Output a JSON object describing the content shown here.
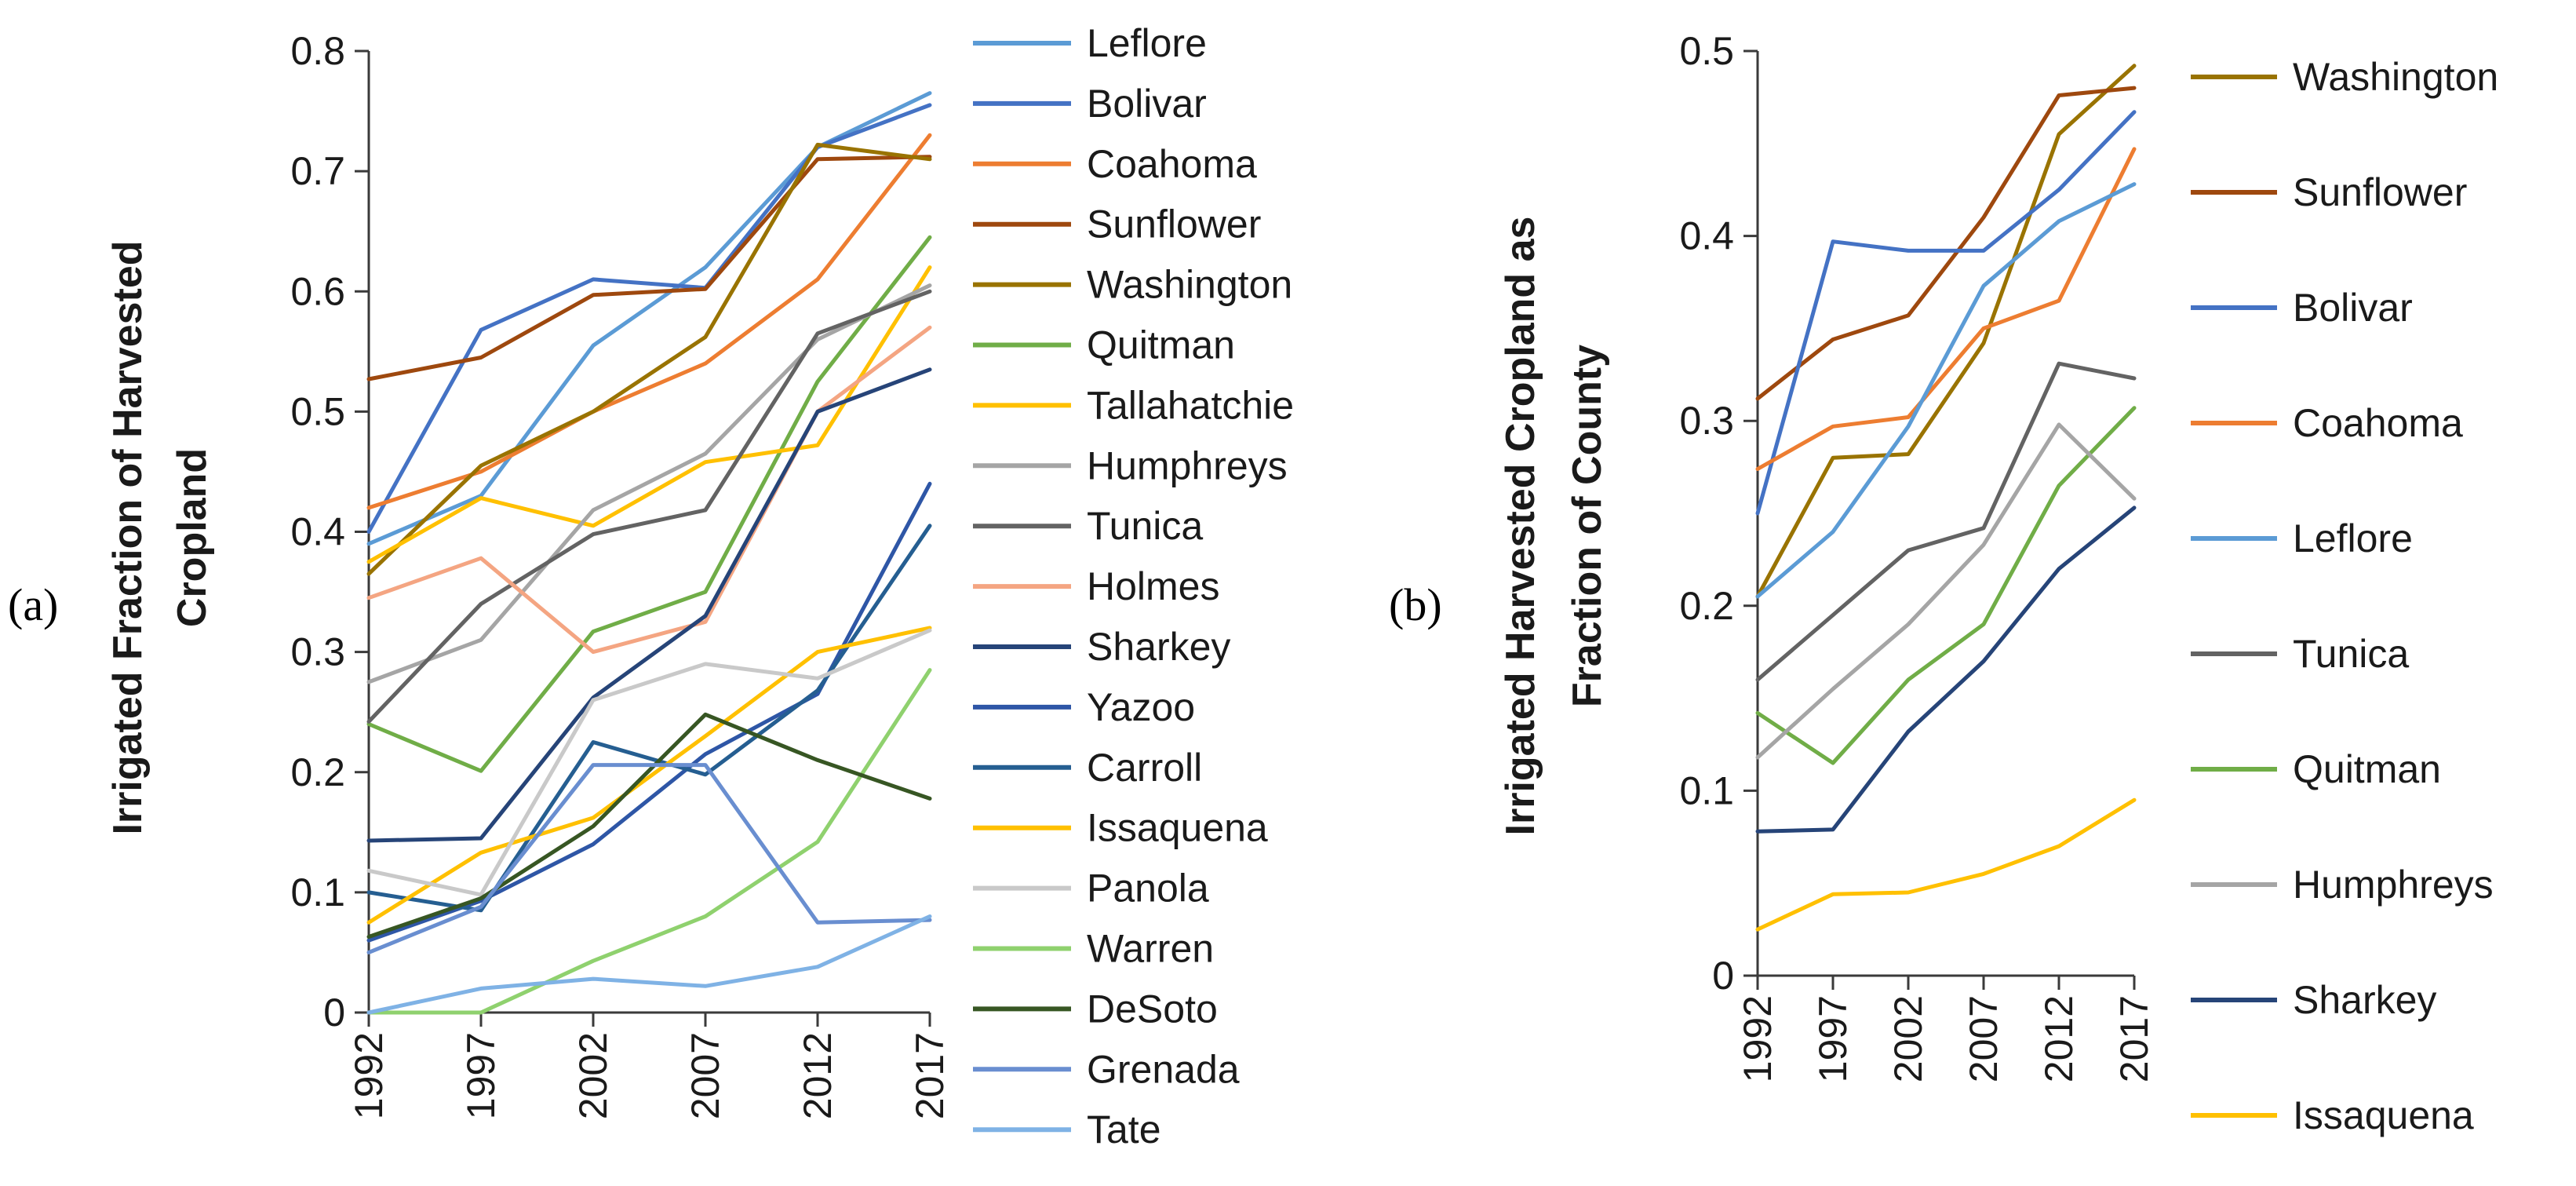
{
  "chart_data": [
    {
      "type": "line",
      "panel_label": "(a)",
      "title": "",
      "xlabel": "",
      "ylabel": "Irrigated Fraction of Harvested Cropland",
      "ylabel_lines": [
        "Irrigated Fraction of Harvested",
        "Cropland"
      ],
      "x": [
        "1992",
        "1997",
        "2002",
        "2007",
        "2012",
        "2017"
      ],
      "ylim": [
        0,
        0.8
      ],
      "yticks": [
        "0",
        "0.1",
        "0.2",
        "0.3",
        "0.4",
        "0.5",
        "0.6",
        "0.7",
        "0.8"
      ],
      "legend_position": "right",
      "series": [
        {
          "name": "Leflore",
          "color": "#5B9BD5",
          "values": [
            0.39,
            0.43,
            0.555,
            0.62,
            0.72,
            0.765
          ]
        },
        {
          "name": "Bolivar",
          "color": "#4472C4",
          "values": [
            0.4,
            0.568,
            0.61,
            0.603,
            0.72,
            0.755
          ]
        },
        {
          "name": "Coahoma",
          "color": "#ED7D31",
          "values": [
            0.42,
            0.45,
            0.5,
            0.54,
            0.61,
            0.73
          ]
        },
        {
          "name": "Sunflower",
          "color": "#9E480E",
          "values": [
            0.527,
            0.545,
            0.597,
            0.602,
            0.71,
            0.712
          ]
        },
        {
          "name": "Washington",
          "color": "#997300",
          "values": [
            0.365,
            0.455,
            0.5,
            0.562,
            0.722,
            0.71
          ]
        },
        {
          "name": "Quitman",
          "color": "#70AD47",
          "values": [
            0.24,
            0.201,
            0.317,
            0.35,
            0.525,
            0.645
          ]
        },
        {
          "name": "Tallahatchie",
          "color": "#FFC000",
          "values": [
            0.375,
            0.428,
            0.405,
            0.458,
            0.472,
            0.62
          ]
        },
        {
          "name": "Humphreys",
          "color": "#A5A5A5",
          "values": [
            0.275,
            0.31,
            0.418,
            0.465,
            0.56,
            0.605
          ]
        },
        {
          "name": "Tunica",
          "color": "#636363",
          "values": [
            0.242,
            0.34,
            0.398,
            0.418,
            0.565,
            0.6
          ]
        },
        {
          "name": "Holmes",
          "color": "#F4A582",
          "values": [
            0.345,
            0.378,
            0.3,
            0.325,
            0.5,
            0.57
          ]
        },
        {
          "name": "Sharkey",
          "color": "#264478",
          "values": [
            0.143,
            0.145,
            0.262,
            0.33,
            0.5,
            0.535
          ]
        },
        {
          "name": "Yazoo",
          "color": "#2E56A6",
          "values": [
            0.06,
            0.093,
            0.14,
            0.215,
            0.265,
            0.44
          ]
        },
        {
          "name": "Carroll",
          "color": "#255E91",
          "values": [
            0.1,
            0.085,
            0.225,
            0.198,
            0.268,
            0.405
          ]
        },
        {
          "name": "Issaquena",
          "color": "#FFC000",
          "values": [
            0.075,
            0.133,
            0.162,
            0.23,
            0.3,
            0.32
          ]
        },
        {
          "name": "Panola",
          "color": "#C9C9C9",
          "values": [
            0.118,
            0.098,
            0.26,
            0.29,
            0.278,
            0.318
          ]
        },
        {
          "name": "Warren",
          "color": "#8FD16E",
          "values": [
            0.0,
            0.0,
            0.043,
            0.08,
            0.142,
            0.285
          ]
        },
        {
          "name": "DeSoto",
          "color": "#375623",
          "values": [
            0.063,
            0.095,
            0.155,
            0.248,
            0.21,
            0.178
          ]
        },
        {
          "name": "Grenada",
          "color": "#698ED0",
          "values": [
            0.05,
            0.088,
            0.206,
            0.206,
            0.075,
            0.077
          ]
        },
        {
          "name": "Tate",
          "color": "#7FB2E5",
          "values": [
            0.0,
            0.02,
            0.028,
            0.022,
            0.038,
            0.08
          ]
        }
      ]
    },
    {
      "type": "line",
      "panel_label": "(b)",
      "title": "",
      "xlabel": "",
      "ylabel": "Irrigated Harvested Cropland as Fraction of County",
      "ylabel_lines": [
        "Irrigated Harvested Cropland as",
        "Fraction of County"
      ],
      "x": [
        "1992",
        "1997",
        "2002",
        "2007",
        "2012",
        "2017"
      ],
      "ylim": [
        0,
        0.5
      ],
      "yticks": [
        "0",
        "0.1",
        "0.2",
        "0.3",
        "0.4",
        "0.5"
      ],
      "legend_position": "right",
      "series": [
        {
          "name": "Washington",
          "color": "#997300",
          "values": [
            0.205,
            0.28,
            0.282,
            0.342,
            0.455,
            0.492
          ]
        },
        {
          "name": "Sunflower",
          "color": "#9E480E",
          "values": [
            0.312,
            0.344,
            0.357,
            0.41,
            0.476,
            0.48
          ]
        },
        {
          "name": "Bolivar",
          "color": "#4472C4",
          "values": [
            0.25,
            0.397,
            0.392,
            0.392,
            0.425,
            0.467
          ]
        },
        {
          "name": "Coahoma",
          "color": "#ED7D31",
          "values": [
            0.274,
            0.297,
            0.302,
            0.35,
            0.365,
            0.447
          ]
        },
        {
          "name": "Leflore",
          "color": "#5B9BD5",
          "values": [
            0.205,
            0.24,
            0.297,
            0.373,
            0.408,
            0.428
          ]
        },
        {
          "name": "Tunica",
          "color": "#636363",
          "values": [
            0.16,
            0.195,
            0.23,
            0.242,
            0.331,
            0.323
          ]
        },
        {
          "name": "Quitman",
          "color": "#70AD47",
          "values": [
            0.142,
            0.115,
            0.16,
            0.19,
            0.265,
            0.307
          ]
        },
        {
          "name": "Humphreys",
          "color": "#A5A5A5",
          "values": [
            0.118,
            0.155,
            0.19,
            0.233,
            0.298,
            0.258
          ]
        },
        {
          "name": "Sharkey",
          "color": "#264478",
          "values": [
            0.078,
            0.079,
            0.132,
            0.17,
            0.22,
            0.253
          ]
        },
        {
          "name": "Issaquena",
          "color": "#FFC000",
          "values": [
            0.025,
            0.044,
            0.045,
            0.055,
            0.07,
            0.095
          ]
        }
      ]
    }
  ]
}
